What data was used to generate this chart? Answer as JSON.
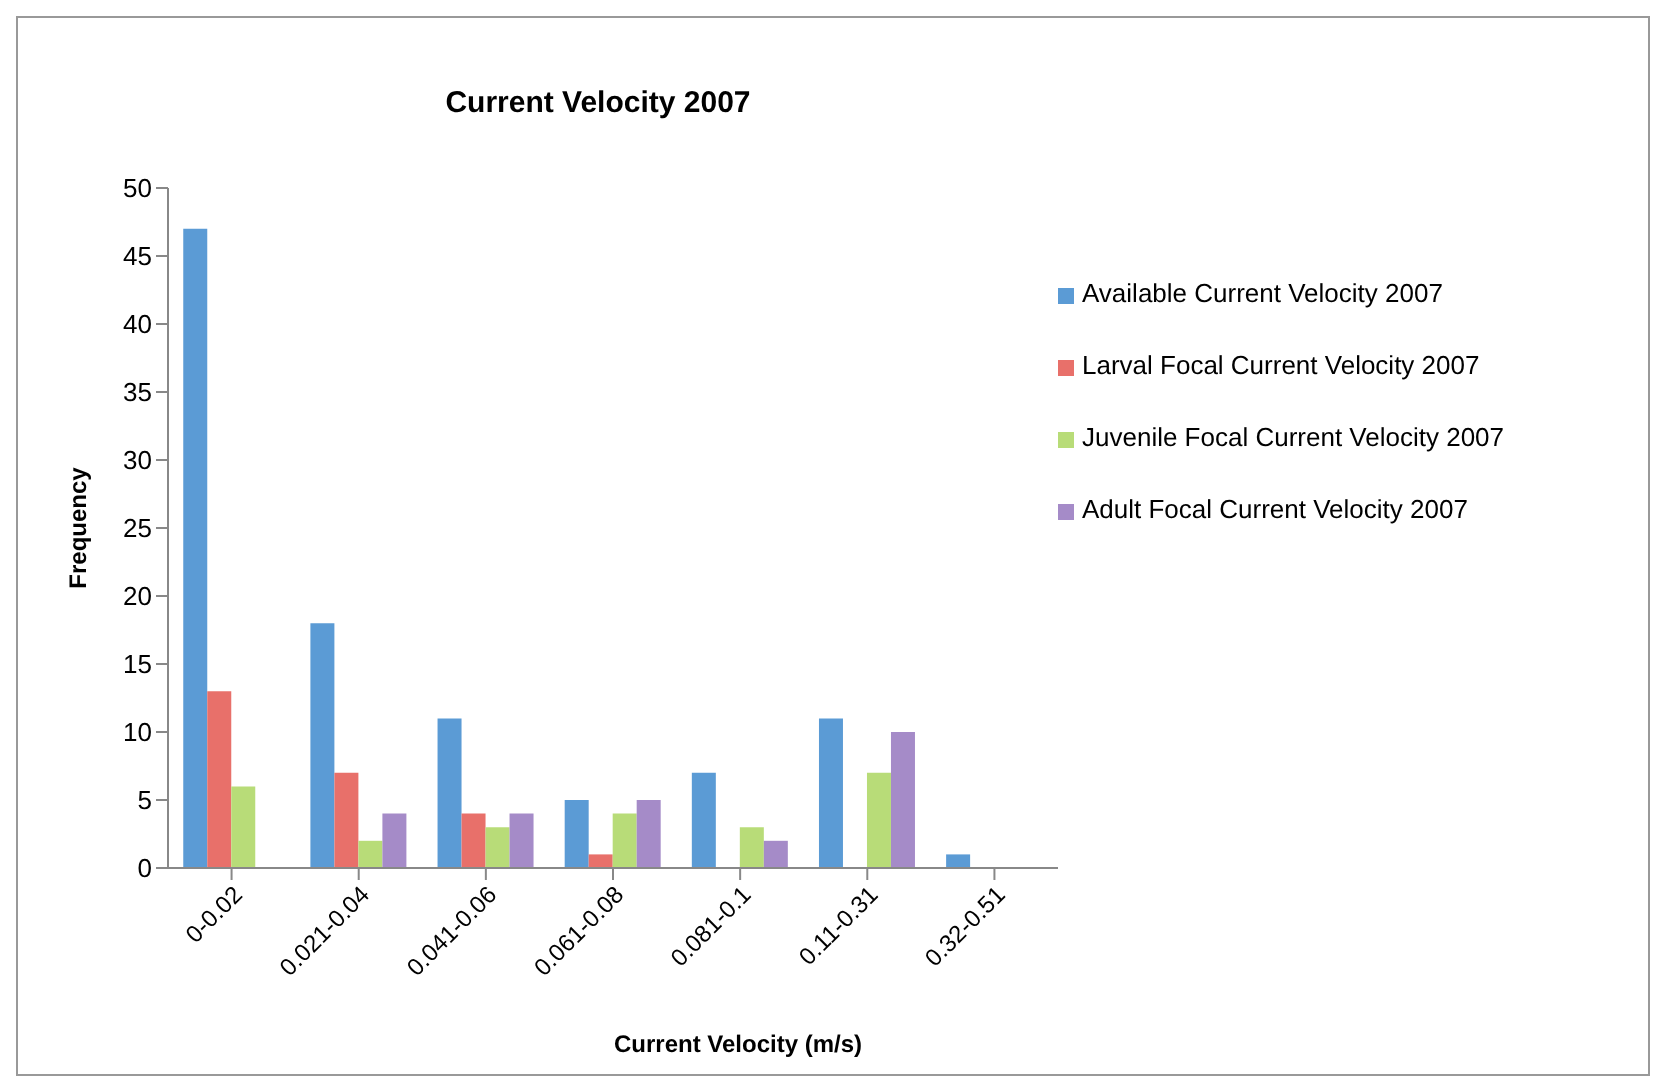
{
  "chart_data": {
    "type": "bar",
    "title": "Current Velocity 2007",
    "xlabel": "Current Velocity (m/s)",
    "ylabel": "Frequency",
    "categories": [
      "0-0.02",
      "0.021-0.04",
      "0.041-0.06",
      "0.061-0.08",
      "0.081-0.1",
      "0.11-0.31",
      "0.32-0.51"
    ],
    "series": [
      {
        "name": "Available Current Velocity 2007",
        "color": "#5b9bd5",
        "values": [
          47,
          18,
          11,
          5,
          7,
          11,
          1
        ]
      },
      {
        "name": "Larval Focal Current Velocity 2007",
        "color": "#e8706a",
        "values": [
          13,
          7,
          4,
          1,
          0,
          0,
          0
        ]
      },
      {
        "name": "Juvenile Focal Current Velocity 2007",
        "color": "#b8dc78",
        "values": [
          6,
          2,
          3,
          4,
          3,
          7,
          0
        ]
      },
      {
        "name": "Adult Focal Current Velocity 2007",
        "color": "#a58bc8",
        "values": [
          0,
          4,
          4,
          5,
          2,
          10,
          0
        ]
      }
    ],
    "ylim": [
      0,
      50
    ],
    "yticks": [
      0,
      5,
      10,
      15,
      20,
      25,
      30,
      35,
      40,
      45,
      50
    ],
    "grid": false,
    "legend": "right"
  }
}
